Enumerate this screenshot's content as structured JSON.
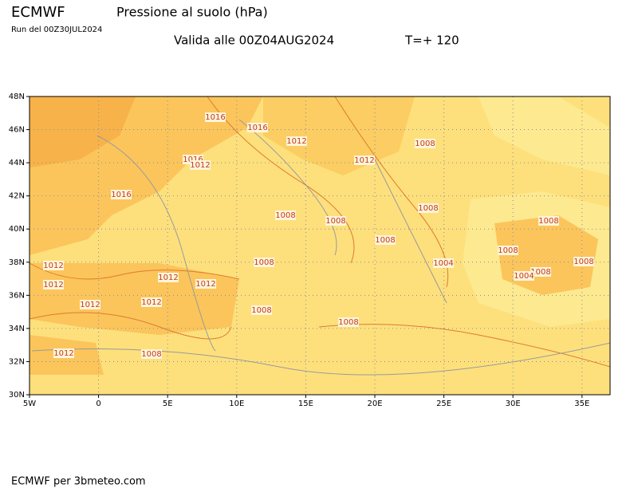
{
  "header": {
    "model": "ECMWF",
    "title": "Pressione al suolo (hPa)",
    "run": "Run del 00Z30JUL2024",
    "valid": "Valida alle 00Z04AUG2024",
    "step": "T=+ 120"
  },
  "map": {
    "lat_labels": [
      "48N",
      "46N",
      "44N",
      "42N",
      "40N",
      "38N",
      "36N",
      "34N",
      "32N",
      "30N"
    ],
    "lon_labels": [
      "5W",
      "0",
      "5E",
      "10E",
      "15E",
      "20E",
      "25E",
      "30E",
      "35E"
    ],
    "contour_labels": [
      "1016",
      "1016",
      "1012",
      "1008",
      "1016",
      "1012",
      "1012",
      "1016",
      "1008",
      "1008",
      "1008",
      "1008",
      "1008",
      "1008",
      "1012",
      "1008",
      "1004",
      "1008",
      "1012",
      "1012",
      "1012",
      "1008",
      "1004",
      "1012",
      "1012",
      "1008",
      "1008",
      "1012",
      "1008"
    ]
  },
  "footer": "ECMWF per 3bmeteo.com"
}
